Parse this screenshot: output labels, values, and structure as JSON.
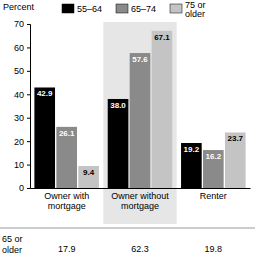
{
  "chart_data": {
    "type": "bar",
    "ylabel": "Percent",
    "categories": [
      "Owner with mortgage",
      "Owner without mortgage",
      "Renter"
    ],
    "series": [
      {
        "name": "55–64",
        "color": "#000000",
        "values": [
          42.9,
          38,
          19.2
        ],
        "value_labels": [
          "42.9",
          "38.0",
          "19.2"
        ]
      },
      {
        "name": "65–74",
        "color": "#8a8a8a",
        "values": [
          26.1,
          57.6,
          16.2
        ]
      },
      {
        "name": "75 or older",
        "color": "#c4c4c4",
        "values": [
          9.4,
          67.1,
          23.7
        ]
      }
    ],
    "ylim": [
      0,
      70
    ],
    "yticks": [
      0,
      10,
      20,
      30,
      40,
      50,
      60,
      70
    ],
    "grid": false,
    "legend": "top",
    "data_labels": true
  },
  "table": {
    "row_label": "65 or older",
    "values": [
      17.9,
      62.3,
      19.8
    ]
  }
}
